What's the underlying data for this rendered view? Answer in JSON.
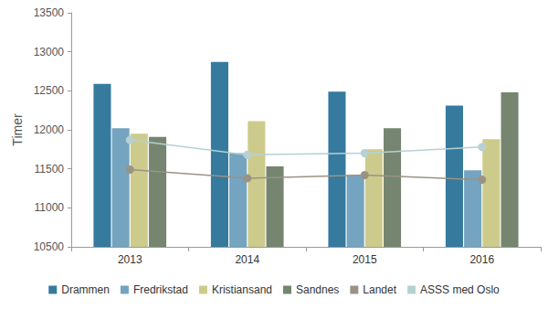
{
  "chart_data": {
    "type": "bar",
    "y_label": "Timer",
    "categories": [
      "2013",
      "2014",
      "2015",
      "2016"
    ],
    "series": [
      {
        "name": "Drammen",
        "type": "bar",
        "color": "#367a9e",
        "values": [
          12590,
          12870,
          12490,
          12310
        ]
      },
      {
        "name": "Fredrikstad",
        "type": "bar",
        "color": "#74a4bf",
        "values": [
          12020,
          11700,
          11420,
          11480
        ]
      },
      {
        "name": "Kristiansand",
        "type": "bar",
        "color": "#cdcb8c",
        "values": [
          11950,
          12110,
          11750,
          11880
        ]
      },
      {
        "name": "Sandnes",
        "type": "bar",
        "color": "#758570",
        "values": [
          11910,
          11530,
          12020,
          12480
        ]
      },
      {
        "name": "Landet",
        "type": "line",
        "marker": "circle",
        "color": "#9a9384",
        "values": [
          11490,
          11380,
          11420,
          11360
        ]
      },
      {
        "name": "ASSS med Oslo",
        "type": "line",
        "marker": "circle",
        "color": "#b5d1d3",
        "values": [
          11870,
          11680,
          11700,
          11780
        ]
      }
    ],
    "ylim": [
      10500,
      13500
    ],
    "yticks": [
      10500,
      11000,
      11500,
      12000,
      12500,
      13000,
      13500
    ],
    "grid": false,
    "legend": "bottom"
  }
}
